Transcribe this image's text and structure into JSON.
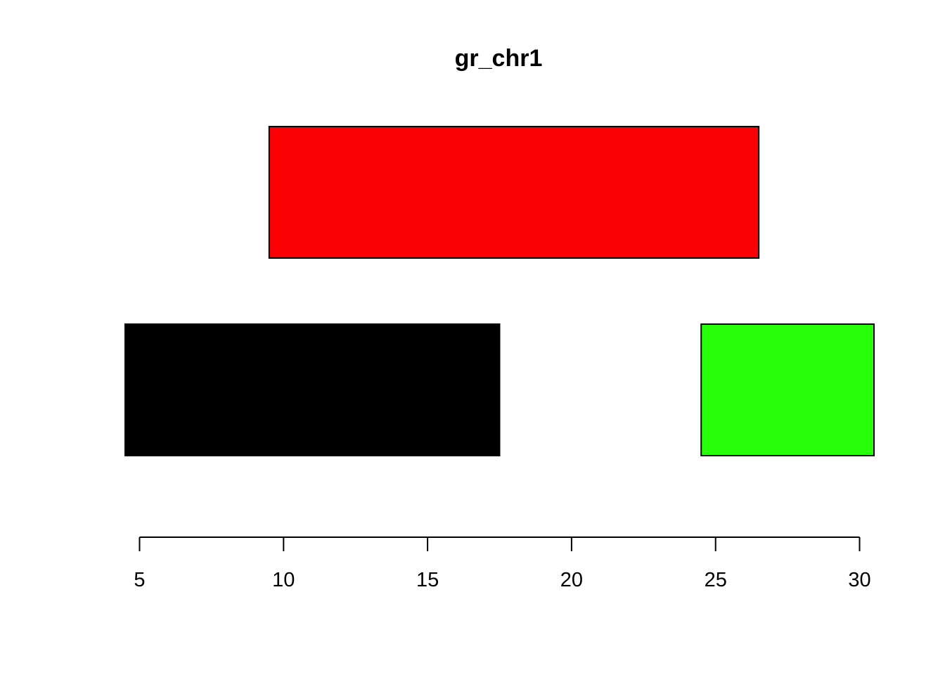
{
  "chart_data": {
    "type": "range",
    "title": "gr_chr1",
    "xlabel": "",
    "ylabel": "",
    "xlim": [
      4.5,
      30.5
    ],
    "x_ticks": [
      5,
      10,
      15,
      20,
      25,
      30
    ],
    "x_tick_labels": [
      "5",
      "10",
      "15",
      "20",
      "25",
      "30"
    ],
    "grid": false,
    "ranges": [
      {
        "start": 10,
        "end": 26,
        "row": 2,
        "color": "#FA0205"
      },
      {
        "start": 5,
        "end": 17,
        "row": 1,
        "color": "#000000"
      },
      {
        "start": 25,
        "end": 30,
        "row": 1,
        "color": "#26FF09"
      }
    ]
  }
}
